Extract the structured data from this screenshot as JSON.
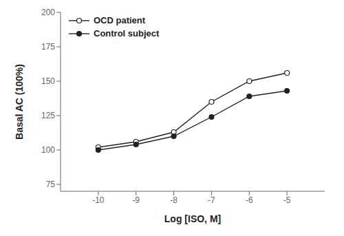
{
  "chart_data": {
    "type": "line",
    "x": [
      -10,
      -9,
      -8,
      -7,
      -6,
      -5
    ],
    "series": [
      {
        "name": "OCD patient",
        "color": "#222222",
        "marker": "open_circle",
        "values": [
          102,
          106,
          113,
          135,
          150,
          156
        ]
      },
      {
        "name": "Control subject",
        "color": "#222222",
        "marker": "circle",
        "values": [
          100,
          104,
          110,
          124,
          139,
          143
        ]
      }
    ],
    "xlabel": "Log [ISO, M]",
    "ylabel": "Basal AC (100%)",
    "xlim": [
      -11,
      -4
    ],
    "ylim": [
      70,
      200
    ],
    "xticks": [
      -10,
      -9,
      -8,
      -7,
      -6,
      -5
    ],
    "yticks": [
      75,
      100,
      125,
      150,
      175,
      200
    ],
    "legend": "upper left",
    "grid": false
  }
}
